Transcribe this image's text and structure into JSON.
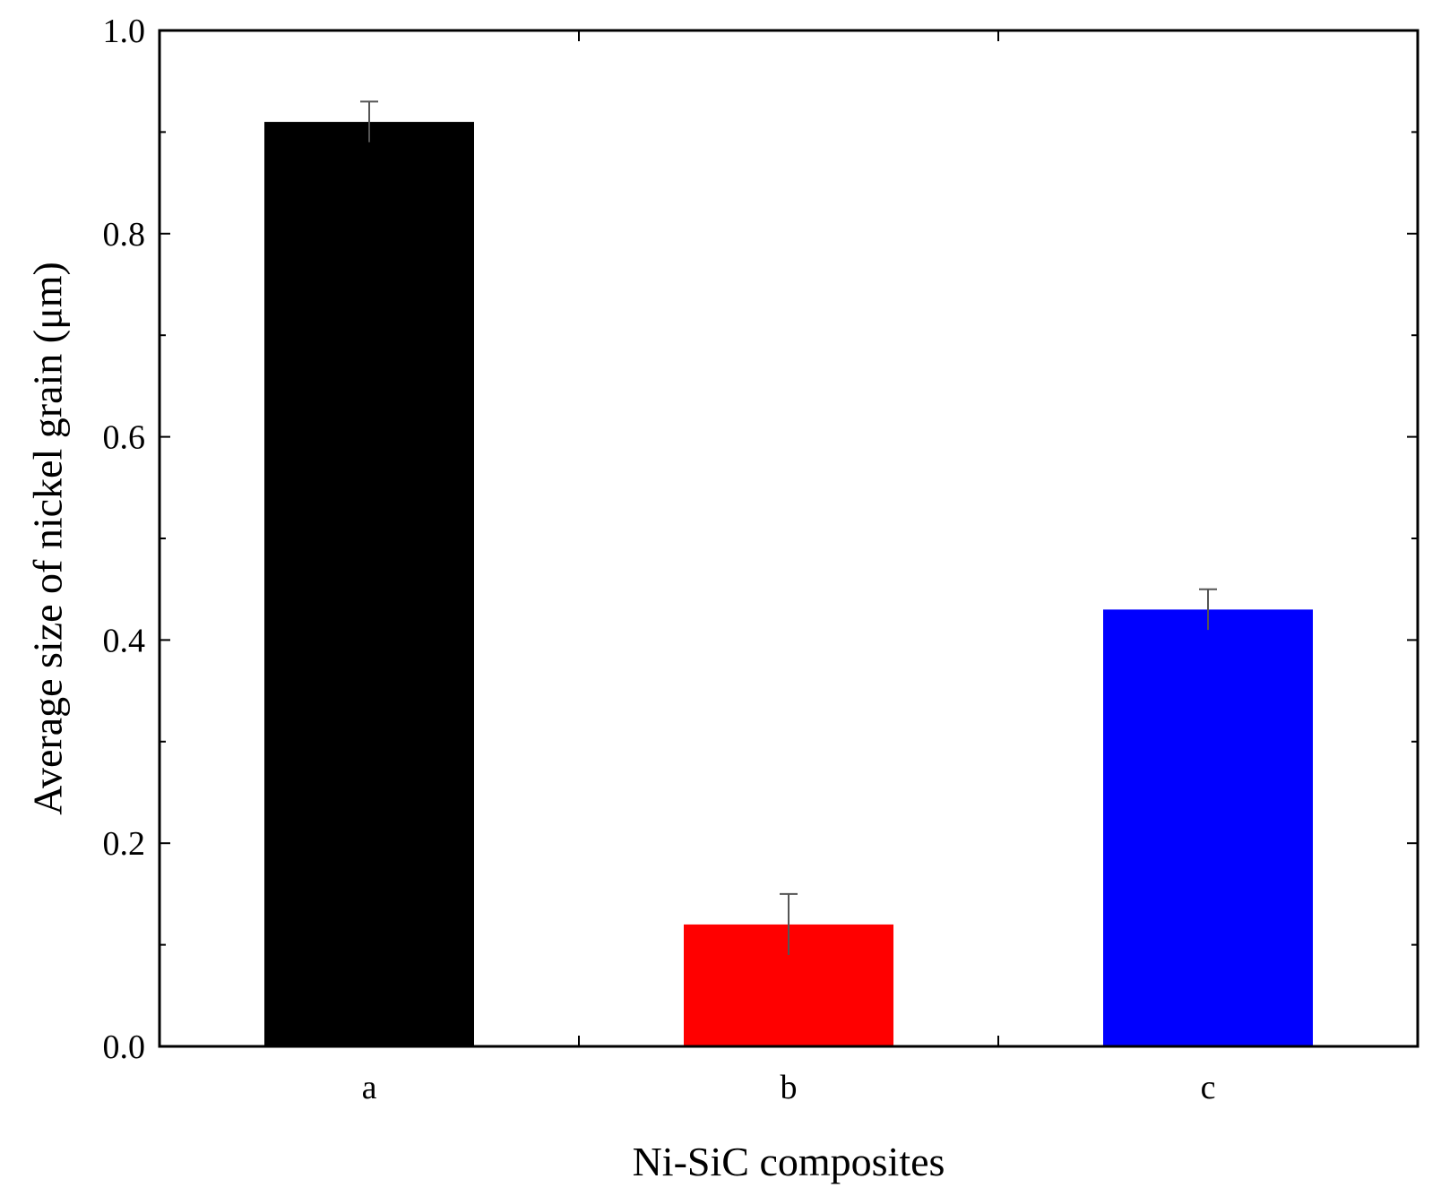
{
  "chart_data": {
    "type": "bar",
    "categories": [
      "a",
      "b",
      "c"
    ],
    "values": [
      0.91,
      0.12,
      0.43
    ],
    "errors": [
      0.02,
      0.03,
      0.02
    ],
    "colors": [
      "#000000",
      "#ff0000",
      "#0000ff"
    ],
    "xlabel": "Ni-SiC composites",
    "ylabel": "Average size of nickel grain (μm)",
    "ylim": [
      0.0,
      1.0
    ],
    "yticks": [
      "0.0",
      "0.2",
      "0.4",
      "0.6",
      "0.8",
      "1.0"
    ],
    "grid": false,
    "legend": "none"
  }
}
